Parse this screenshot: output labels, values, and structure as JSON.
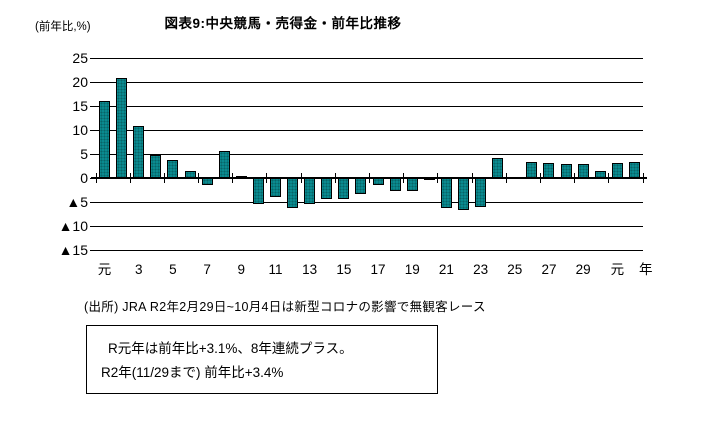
{
  "header": {
    "title": "図表9:中央競馬・売得金・前年比推移",
    "y_axis_unit": "(前年比,%)"
  },
  "colors": {
    "bar_fill": "#0a8a8f",
    "bar_border": "#000000",
    "grid": "#000000",
    "text": "#000000"
  },
  "chart_data": {
    "type": "bar",
    "title": "図表9:中央競馬・売得金・前年比推移",
    "ylabel": "(前年比,%)",
    "x_unit_label": "年",
    "ylim": [
      -15,
      25
    ],
    "grid": true,
    "legend": false,
    "yticks": [
      {
        "value": 25,
        "label": "25"
      },
      {
        "value": 20,
        "label": "20"
      },
      {
        "value": 15,
        "label": "15"
      },
      {
        "value": 10,
        "label": "10"
      },
      {
        "value": 5,
        "label": "5"
      },
      {
        "value": 0,
        "label": "0"
      },
      {
        "value": -5,
        "label": "▲5"
      },
      {
        "value": -10,
        "label": "▲10"
      },
      {
        "value": -15,
        "label": "▲15"
      }
    ],
    "categories": [
      "元",
      "2",
      "3",
      "4",
      "5",
      "6",
      "7",
      "8",
      "9",
      "10",
      "11",
      "12",
      "13",
      "14",
      "15",
      "16",
      "17",
      "18",
      "19",
      "20",
      "21",
      "22",
      "23",
      "24",
      "25",
      "26",
      "27",
      "28",
      "29",
      "30",
      "元",
      "2"
    ],
    "xtick_label_indices": [
      0,
      2,
      4,
      6,
      8,
      10,
      12,
      14,
      16,
      18,
      20,
      22,
      24,
      26,
      28,
      30
    ],
    "values": [
      16.0,
      20.9,
      10.8,
      4.8,
      3.8,
      1.5,
      -1.5,
      5.7,
      0.4,
      -5.5,
      -4.0,
      -6.3,
      -5.5,
      -4.3,
      -4.4,
      -3.3,
      -1.5,
      -2.7,
      -2.8,
      -0.5,
      -6.2,
      -6.7,
      -6.1,
      4.1,
      0.3,
      3.3,
      3.2,
      3.0,
      3.0,
      1.5,
      3.1,
      3.4
    ]
  },
  "footer": {
    "source_note": "(出所) JRA  R2年2月29日~10月4日は新型コロナの影響で無観客レース",
    "note_box": {
      "line1": "R元年は前年比+3.1%、8年連続プラス。",
      "line2": "R2年(11/29まで) 前年比+3.4%"
    }
  }
}
